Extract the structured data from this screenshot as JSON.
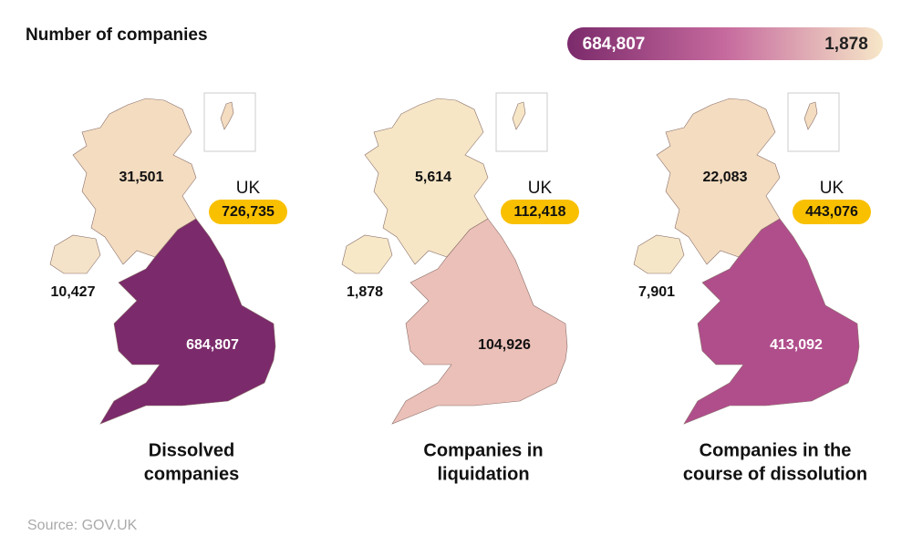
{
  "title": "Number of companies",
  "legend": {
    "max": "684,807",
    "min": "1,878",
    "colors": [
      "#7b2a6b",
      "#c66a9e",
      "#f7e7c8"
    ]
  },
  "maps": [
    {
      "caption": [
        "Dissolved",
        "companies"
      ],
      "scotland": "31,501",
      "northern_ireland": "10,427",
      "england_wales": "684,807",
      "uk_label": "UK",
      "uk": "726,735",
      "fills": {
        "scotland": "#f3dcc0",
        "northern_ireland": "#f4e3c8",
        "england_wales": "#7b2a6b",
        "england_wales_text": "#ffffff"
      }
    },
    {
      "caption": [
        "Companies in",
        "liquidation"
      ],
      "scotland": "5,614",
      "northern_ireland": "1,878",
      "england_wales": "104,926",
      "uk_label": "UK",
      "uk": "112,418",
      "fills": {
        "scotland": "#f6e6c6",
        "northern_ireland": "#f7e9c8",
        "england_wales": "#ebc0b8",
        "england_wales_text": "#111111"
      }
    },
    {
      "caption": [
        "Companies in the",
        "course of dissolution"
      ],
      "scotland": "22,083",
      "northern_ireland": "7,901",
      "england_wales": "413,092",
      "uk_label": "UK",
      "uk": "443,076",
      "fills": {
        "scotland": "#f3dcc0",
        "northern_ireland": "#f6e6c8",
        "england_wales": "#b04e8c",
        "england_wales_text": "#ffffff"
      }
    }
  ],
  "source": "Source: GOV.UK"
}
